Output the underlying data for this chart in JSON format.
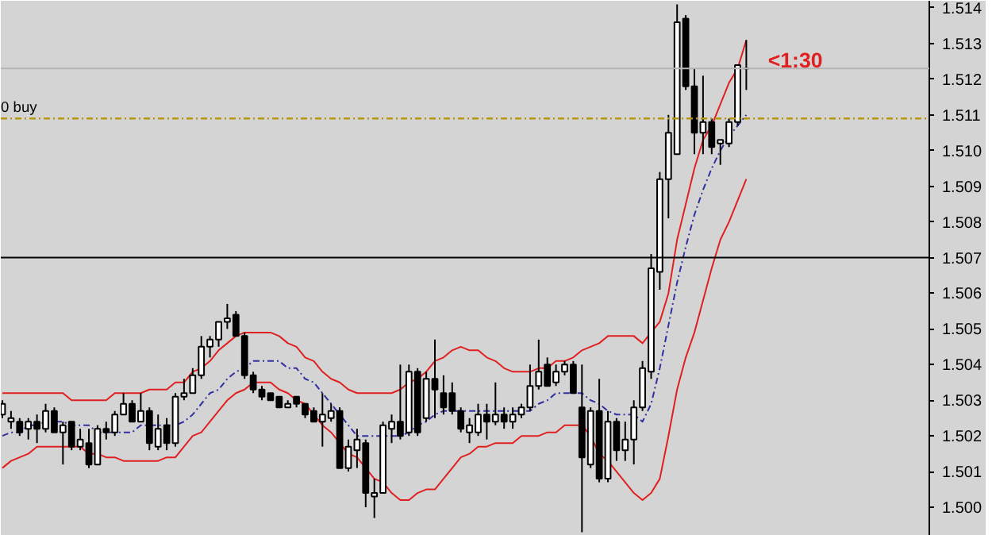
{
  "chart_data": {
    "type": "candlestick",
    "categories": [
      null,
      null,
      null,
      null,
      null,
      null,
      null,
      null,
      null,
      null,
      null,
      null,
      null,
      null,
      null,
      null,
      null,
      null,
      null,
      null,
      null,
      null,
      null,
      null,
      null,
      null,
      null,
      null,
      null,
      null,
      null,
      null,
      null,
      null,
      null,
      null,
      null,
      null,
      null,
      null,
      null,
      null,
      null,
      null,
      null,
      null,
      null,
      null,
      null,
      null,
      null,
      null,
      null,
      null,
      null,
      null,
      null,
      null,
      null,
      null,
      null,
      null,
      null,
      null,
      null,
      null,
      null,
      null,
      null,
      null,
      null,
      null,
      null,
      null,
      null,
      null,
      null,
      null,
      null,
      null,
      null,
      null,
      null,
      null,
      null,
      null,
      null
    ],
    "ylim": [
      1.4992,
      1.5142
    ],
    "yticks": [
      {
        "value": 1.5,
        "label": "1.500"
      },
      1.501,
      1.502,
      1.503,
      1.504,
      1.505,
      1.506,
      1.507,
      1.508,
      1.509,
      {
        "value": 1.51,
        "label": "1.510"
      },
      1.511,
      1.512,
      1.513,
      1.514
    ],
    "ohlc": [
      [
        1.5026,
        1.503,
        1.5025,
        1.5029
      ],
      [
        1.5024,
        1.5027,
        1.5022,
        1.5025
      ],
      [
        1.5024,
        1.5025,
        1.502,
        1.5021
      ],
      [
        1.5022,
        1.5025,
        1.5019,
        1.5024
      ],
      [
        1.5024,
        1.5026,
        1.5018,
        1.5022
      ],
      [
        1.5022,
        1.5029,
        1.5021,
        1.5027
      ],
      [
        1.5027,
        1.5028,
        1.5021,
        1.5021
      ],
      [
        1.5021,
        1.5024,
        1.5012,
        1.5023
      ],
      [
        1.5024,
        1.5024,
        1.5016,
        1.5017
      ],
      [
        1.5017,
        1.5022,
        1.5016,
        1.5019
      ],
      [
        1.5018,
        1.5022,
        1.5011,
        1.5012
      ],
      [
        1.5012,
        1.5023,
        1.5012,
        1.5022
      ],
      [
        1.5022,
        1.5024,
        1.5019,
        1.5021
      ],
      [
        1.5021,
        1.5027,
        1.502,
        1.5026
      ],
      [
        1.5026,
        1.5032,
        1.5026,
        1.5029
      ],
      [
        1.5029,
        1.503,
        1.5024,
        1.5024
      ],
      [
        1.5024,
        1.5032,
        1.5024,
        1.5027
      ],
      [
        1.5027,
        1.5028,
        1.5016,
        1.5018
      ],
      [
        1.5017,
        1.5026,
        1.5016,
        1.5022
      ],
      [
        1.5023,
        1.5025,
        1.5016,
        1.5018
      ],
      [
        1.5018,
        1.5032,
        1.5017,
        1.5031
      ],
      [
        1.5031,
        1.5036,
        1.503,
        1.5032
      ],
      [
        1.5032,
        1.5039,
        1.5032,
        1.5037
      ],
      [
        1.5037,
        1.5048,
        1.5036,
        1.5045
      ],
      [
        1.5045,
        1.5048,
        1.5042,
        1.5047
      ],
      [
        1.5047,
        1.5052,
        1.5045,
        1.5052
      ],
      [
        1.5052,
        1.5057,
        1.505,
        1.5053
      ],
      [
        1.5054,
        1.5055,
        1.5048,
        1.5048
      ],
      [
        1.5048,
        1.5049,
        1.5036,
        1.5037
      ],
      [
        1.5037,
        1.5038,
        1.5032,
        1.5033
      ],
      [
        1.5033,
        1.5034,
        1.503,
        1.5031
      ],
      [
        1.5032,
        1.5032,
        1.503,
        1.503
      ],
      [
        1.5031,
        1.5031,
        1.5028,
        1.5028
      ],
      [
        1.5028,
        1.503,
        1.5028,
        1.5029
      ],
      [
        1.5031,
        1.5031,
        1.5028,
        1.5029
      ],
      [
        1.5029,
        1.5029,
        1.5025,
        1.5026
      ],
      [
        1.5027,
        1.5028,
        1.5024,
        1.5024
      ],
      [
        1.5024,
        1.5032,
        1.5017,
        1.5026
      ],
      [
        1.5025,
        1.5029,
        1.5024,
        1.5027
      ],
      [
        1.5027,
        1.5028,
        1.5011,
        1.5011
      ],
      [
        1.5011,
        1.5019,
        1.501,
        1.5017
      ],
      [
        1.5016,
        1.5022,
        1.5011,
        1.5019
      ],
      [
        1.5018,
        1.5019,
        1.5,
        1.5004
      ],
      [
        1.5003,
        1.5008,
        1.4997,
        1.5004
      ],
      [
        1.5004,
        1.5024,
        1.5004,
        1.5023
      ],
      [
        1.5022,
        1.5026,
        1.5018,
        1.5024
      ],
      [
        1.5024,
        1.504,
        1.5019,
        1.502
      ],
      [
        1.5021,
        1.504,
        1.502,
        1.5038
      ],
      [
        1.5038,
        1.5039,
        1.502,
        1.5021
      ],
      [
        1.5025,
        1.5038,
        1.5024,
        1.5036
      ],
      [
        1.5036,
        1.5047,
        1.5025,
        1.5033
      ],
      [
        1.5032,
        1.5037,
        1.5026,
        1.5028
      ],
      [
        1.5032,
        1.5035,
        1.5026,
        1.5027
      ],
      [
        1.5027,
        1.5028,
        1.5021,
        1.5022
      ],
      [
        1.5021,
        1.5025,
        1.5018,
        1.5023
      ],
      [
        1.5021,
        1.5029,
        1.502,
        1.5026
      ],
      [
        1.5026,
        1.5029,
        1.5019,
        1.5024
      ],
      [
        1.5024,
        1.5035,
        1.5023,
        1.5026
      ],
      [
        1.5026,
        1.5028,
        1.5022,
        1.5024
      ],
      [
        1.5024,
        1.5028,
        1.5022,
        1.5026
      ],
      [
        1.5026,
        1.5029,
        1.5025,
        1.5028
      ],
      [
        1.5028,
        1.504,
        1.5027,
        1.5034
      ],
      [
        1.5034,
        1.5047,
        1.5033,
        1.5038
      ],
      [
        1.504,
        1.5042,
        1.5034,
        1.5034
      ],
      [
        1.5035,
        1.504,
        1.5034,
        1.5038
      ],
      [
        1.5038,
        1.5041,
        1.5037,
        1.504
      ],
      [
        1.504,
        1.5041,
        1.5032,
        1.5032
      ],
      [
        1.5028,
        1.504,
        1.4993,
        1.5014
      ],
      [
        1.5012,
        1.5028,
        1.5011,
        1.5027
      ],
      [
        1.5027,
        1.5036,
        1.5007,
        1.5008
      ],
      [
        1.5008,
        1.5027,
        1.5007,
        1.5024
      ],
      [
        1.5024,
        1.5025,
        1.5013,
        1.5016
      ],
      [
        1.5016,
        1.5024,
        1.5013,
        1.5019
      ],
      [
        1.5019,
        1.503,
        1.5012,
        1.5028
      ],
      [
        1.5028,
        1.5041,
        1.5027,
        1.5039
      ],
      [
        1.5038,
        1.5071,
        1.5036,
        1.5067
      ],
      [
        1.5066,
        1.5094,
        1.5061,
        1.5092
      ],
      [
        1.5092,
        1.511,
        1.5081,
        1.5105
      ],
      [
        1.5099,
        1.5141,
        1.5099,
        1.5136
      ],
      [
        1.5137,
        1.5138,
        1.5117,
        1.5118
      ],
      [
        1.5118,
        1.5123,
        1.5099,
        1.5105
      ],
      [
        1.5105,
        1.5121,
        1.5099,
        1.5108
      ],
      [
        1.5108,
        1.5109,
        1.5099,
        1.5101
      ],
      [
        1.5102,
        1.5103,
        1.5096,
        1.5103
      ],
      [
        1.5102,
        1.5109,
        1.5101,
        1.5108
      ],
      [
        1.5108,
        1.5124,
        1.5107,
        1.5124
      ],
      [
        1.5123,
        1.5131,
        1.5117,
        1.5123
      ]
    ],
    "series": [
      {
        "type": "line",
        "color": "#e02020",
        "line_style": "solid",
        "values": [
          1.5032,
          1.5032,
          1.5032,
          1.5032,
          1.5032,
          1.5032,
          1.5032,
          1.5032,
          1.503,
          1.503,
          1.503,
          1.503,
          1.503,
          1.5032,
          1.5032,
          1.5032,
          1.5032,
          1.5033,
          1.5033,
          1.5033,
          1.5035,
          1.5035,
          1.5038,
          1.5039,
          1.5041,
          1.5044,
          1.5046,
          1.5048,
          1.5049,
          1.5049,
          1.5049,
          1.5049,
          1.5048,
          1.5046,
          1.5045,
          1.5042,
          1.5041,
          1.5038,
          1.5036,
          1.5035,
          1.5033,
          1.5032,
          1.5032,
          1.5032,
          1.5032,
          1.5032,
          1.5033,
          1.5035,
          1.5036,
          1.5038,
          1.5041,
          1.5042,
          1.5044,
          1.5045,
          1.5044,
          1.5044,
          1.5042,
          1.5041,
          1.5039,
          1.5038,
          1.5038,
          1.5038,
          1.5039,
          1.5039,
          1.5041,
          1.5041,
          1.5042,
          1.5044,
          1.5045,
          1.5046,
          1.5048,
          1.5048,
          1.5048,
          1.5048,
          1.5046,
          1.5049,
          1.5052,
          1.506,
          1.5075,
          1.5085,
          1.5095,
          1.5103,
          1.5107,
          1.5113,
          1.5119,
          1.5123,
          1.5131
        ]
      },
      {
        "type": "line",
        "color": "#3030a0",
        "line_style": "dashed",
        "values": [
          1.502,
          1.5021,
          1.5021,
          1.5023,
          1.5023,
          1.5024,
          1.5024,
          1.5024,
          1.5023,
          1.5023,
          1.5023,
          1.5021,
          1.5021,
          1.5021,
          1.5021,
          1.5021,
          1.5023,
          1.5023,
          1.5023,
          1.5023,
          1.5023,
          1.5024,
          1.5026,
          1.5029,
          1.5032,
          1.5033,
          1.5036,
          1.5038,
          1.5039,
          1.5041,
          1.5041,
          1.5041,
          1.5041,
          1.5039,
          1.5039,
          1.5036,
          1.5035,
          1.5032,
          1.5029,
          1.5026,
          1.5023,
          1.502,
          1.502,
          1.502,
          1.502,
          1.502,
          1.502,
          1.5021,
          1.5023,
          1.5024,
          1.5026,
          1.5027,
          1.5027,
          1.5027,
          1.5027,
          1.5027,
          1.5027,
          1.5027,
          1.5027,
          1.5027,
          1.5027,
          1.5027,
          1.5029,
          1.503,
          1.5032,
          1.5032,
          1.5032,
          1.5032,
          1.503,
          1.5029,
          1.5027,
          1.5026,
          1.5026,
          1.5026,
          1.5024,
          1.5029,
          1.5039,
          1.5051,
          1.5063,
          1.5073,
          1.5082,
          1.5089,
          1.5095,
          1.51,
          1.5104,
          1.5107,
          1.511
        ]
      },
      {
        "type": "line",
        "color": "#e02020",
        "line_style": "solid",
        "values": [
          1.5011,
          1.5013,
          1.5014,
          1.5015,
          1.5017,
          1.5017,
          1.5017,
          1.5017,
          1.5017,
          1.5017,
          1.5015,
          1.5015,
          1.5014,
          1.5014,
          1.5013,
          1.5013,
          1.5013,
          1.5013,
          1.5013,
          1.5014,
          1.5014,
          1.5017,
          1.502,
          1.5021,
          1.5024,
          1.5027,
          1.503,
          1.5032,
          1.5033,
          1.5035,
          1.5035,
          1.5035,
          1.5033,
          1.5032,
          1.503,
          1.5029,
          1.5026,
          1.5023,
          1.5021,
          1.5018,
          1.5015,
          1.5014,
          1.5011,
          1.5008,
          1.5007,
          1.5004,
          1.5002,
          1.5002,
          1.5004,
          1.5005,
          1.5005,
          1.5008,
          1.5011,
          1.5014,
          1.5015,
          1.5017,
          1.5017,
          1.5018,
          1.5018,
          1.5018,
          1.502,
          1.502,
          1.502,
          1.5021,
          1.5021,
          1.5023,
          1.5023,
          1.5023,
          1.502,
          1.5015,
          1.5013,
          1.501,
          1.5007,
          1.5004,
          1.5002,
          1.5004,
          1.5008,
          1.502,
          1.5033,
          1.5042,
          1.5049,
          1.5058,
          1.5067,
          1.5075,
          1.508,
          1.5086,
          1.5092
        ]
      }
    ],
    "ref_lines": [
      {
        "axis": "y",
        "value": 1.5123,
        "label": null,
        "color": "#b4b4b4",
        "line_style": "solid"
      },
      {
        "axis": "y",
        "value": 1.5109,
        "label": "0 buy",
        "color": "#b8960c",
        "line_style": "dashed"
      },
      {
        "axis": "y",
        "value": 1.507,
        "label": null,
        "color": "#000000",
        "line_style": "solid"
      }
    ],
    "annotations": [
      "<1:30"
    ],
    "grid": false
  }
}
